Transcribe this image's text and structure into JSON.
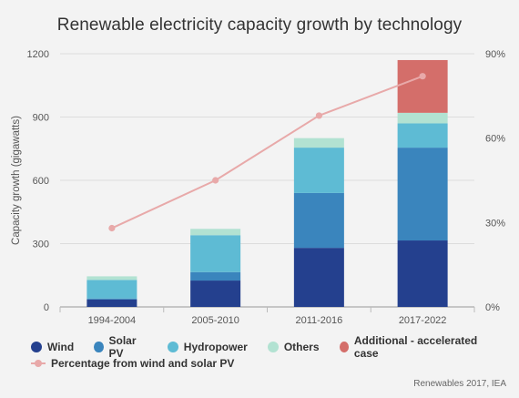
{
  "colors": {
    "wind": "#24408e",
    "solar": "#3a85bd",
    "hydro": "#5ebbd4",
    "others": "#b2e2d2",
    "accel": "#d46e6a",
    "line": "#e8a9a9"
  },
  "chart_data": {
    "type": "bar",
    "stacked": true,
    "title": "Renewable electricity capacity growth by technology",
    "ylabel": "Capacity growth (gigawatts)",
    "y2label": "",
    "ylim": [
      0,
      1200
    ],
    "yticks": [
      "0",
      "300",
      "600",
      "900",
      "1200"
    ],
    "y2lim": [
      0,
      90
    ],
    "y2ticks": [
      "0%",
      "30%",
      "60%",
      "90%"
    ],
    "categories": [
      "1994-2004",
      "2005-2010",
      "2011-2016",
      "2017-2022"
    ],
    "series": [
      {
        "name": "Wind",
        "color_key": "wind",
        "values": [
          35,
          125,
          280,
          315
        ]
      },
      {
        "name": "Solar PV",
        "color_key": "solar",
        "values": [
          5,
          40,
          260,
          440
        ]
      },
      {
        "name": "Hydropower",
        "color_key": "hydro",
        "values": [
          88,
          175,
          215,
          115
        ]
      },
      {
        "name": "Others",
        "color_key": "others",
        "values": [
          17,
          30,
          45,
          50
        ]
      },
      {
        "name": "Additional - accelerated case",
        "color_key": "accel",
        "values": [
          0,
          0,
          0,
          250
        ]
      }
    ],
    "line_series": {
      "name": "Percentage from wind and solar PV",
      "color_key": "line",
      "axis": "right",
      "values": [
        28,
        45,
        68,
        82
      ]
    },
    "grid": true,
    "legend_position": "bottom-left"
  },
  "source": "Renewables 2017, IEA"
}
